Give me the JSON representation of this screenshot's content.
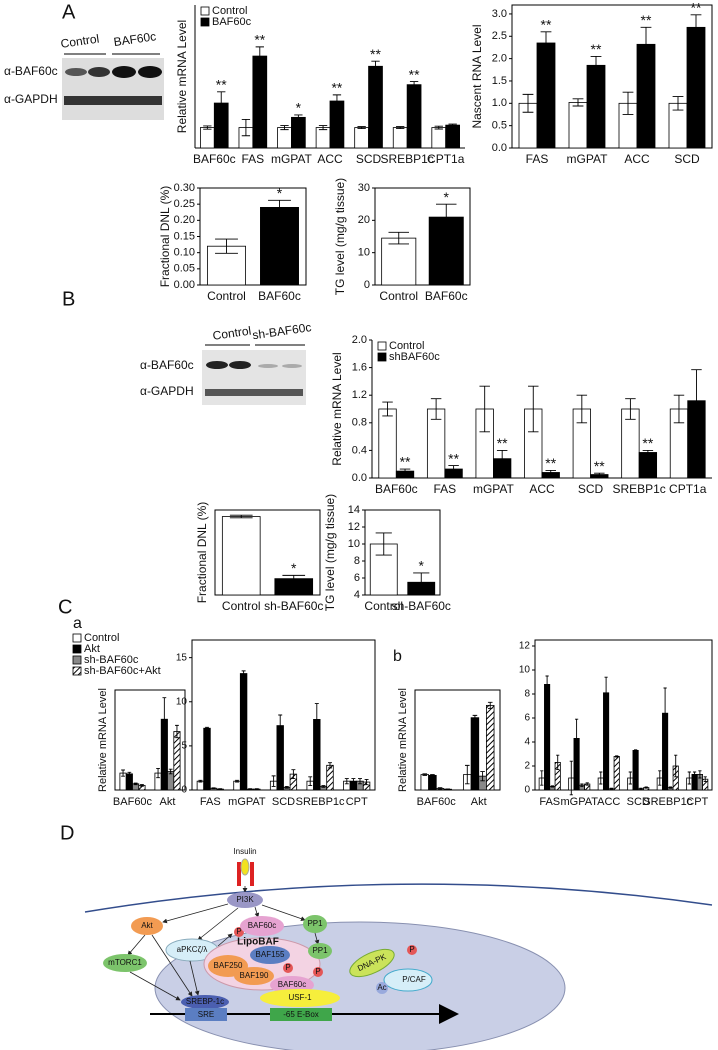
{
  "panel_labels": [
    "A",
    "B",
    "C",
    "D"
  ],
  "subpanel_labels": [
    "a",
    "b"
  ],
  "blots": [
    {
      "lanes": [
        "Control",
        "BAF60c"
      ],
      "rows": [
        "α-BAF60c",
        "α-GAPDH"
      ]
    },
    {
      "lanes": [
        "Control",
        "sh-BAF60c"
      ],
      "rows": [
        "α-BAF60c",
        "α-GAPDH"
      ]
    }
  ],
  "diagram": {
    "nodes": [
      "Insulin",
      "PI3K",
      "Akt",
      "aPKCζ/λ",
      "P",
      "BAF60c",
      "PP1",
      "mTORC1",
      "LipoBAF",
      "BAF155",
      "BAF250",
      "BAF190",
      "P",
      "BAF60c",
      "PP1",
      "P",
      "DNA-PK",
      "P",
      "Ac",
      "P/CAF",
      "USF-1",
      "SREBP-1c",
      "SRE",
      "-65 E-Box"
    ]
  },
  "chart_data": [
    {
      "type": "bar",
      "ylabel": "Relative mRNA Level",
      "categories": [
        "BAF60c",
        "FAS",
        "mGPAT",
        "ACC",
        "SCD",
        "SREBP1c",
        "CPT1a"
      ],
      "series": [
        {
          "name": "Control",
          "color": "#ffffff",
          "values": [
            1,
            1,
            1,
            1,
            1,
            1,
            1
          ],
          "errors": [
            0.08,
            0.4,
            0.1,
            0.1,
            0.05,
            0.05,
            0.07
          ]
        },
        {
          "name": "BAF60c",
          "color": "#000000",
          "values": [
            2.2,
            4.5,
            1.5,
            2.3,
            4.0,
            3.1,
            1.12
          ],
          "errors": [
            0.55,
            0.45,
            0.12,
            0.3,
            0.25,
            0.15,
            0.05
          ]
        }
      ],
      "annotations": [
        "**",
        "**",
        "*",
        "**",
        "**",
        "**",
        null
      ],
      "ylim": [
        0,
        7
      ],
      "legend": "upper left"
    },
    {
      "type": "bar",
      "ylabel": "Nascent RNA Level",
      "categories": [
        "FAS",
        "mGPAT",
        "ACC",
        "SCD"
      ],
      "series": [
        {
          "color": "#ffffff",
          "values": [
            1.0,
            1.02,
            1.0,
            1.0
          ],
          "errors": [
            0.2,
            0.08,
            0.25,
            0.15
          ]
        },
        {
          "color": "#000000",
          "values": [
            2.35,
            1.85,
            2.32,
            2.7
          ],
          "errors": [
            0.25,
            0.2,
            0.38,
            0.28
          ]
        }
      ],
      "annotations": [
        "**",
        "**",
        "**",
        "**"
      ],
      "ylim": [
        0,
        3.2
      ],
      "yticks": [
        {
          "value": 0,
          "label": "0.0"
        },
        {
          "value": 0.5,
          "label": "0.5"
        },
        {
          "value": 1,
          "label": "1.0"
        },
        {
          "value": 1.5,
          "label": "1.5"
        },
        {
          "value": 2,
          "label": "2.0"
        },
        {
          "value": 2.5,
          "label": "2.5"
        },
        {
          "value": 3,
          "label": "3.0"
        }
      ]
    },
    {
      "type": "bar",
      "ylabel": "Fractional DNL (%)",
      "categories": [
        "Control",
        "BAF60c"
      ],
      "values": [
        0.12,
        0.24
      ],
      "errors": [
        0.022,
        0.022
      ],
      "colors": [
        "#ffffff",
        "#000000"
      ],
      "annotations": [
        null,
        "*"
      ],
      "ylim": [
        0,
        0.3
      ],
      "yticks": [
        {
          "value": 0,
          "label": "0.00"
        },
        {
          "value": 0.05,
          "label": "0.05"
        },
        {
          "value": 0.1,
          "label": "0.10"
        },
        {
          "value": 0.15,
          "label": "0.15"
        },
        {
          "value": 0.2,
          "label": "0.20"
        },
        {
          "value": 0.25,
          "label": "0.25"
        },
        {
          "value": 0.3,
          "label": "0.30"
        }
      ]
    },
    {
      "type": "bar",
      "ylabel": "TG level (mg/g tissue)",
      "categories": [
        "Control",
        "BAF60c"
      ],
      "values": [
        14.5,
        21
      ],
      "errors": [
        1.8,
        4
      ],
      "colors": [
        "#ffffff",
        "#000000"
      ],
      "annotations": [
        null,
        "*"
      ],
      "ylim": [
        0,
        30
      ],
      "yticks": [
        0,
        10,
        20,
        30
      ]
    },
    {
      "type": "bar",
      "ylabel": "Relative mRNA Level",
      "categories": [
        "BAF60c",
        "FAS",
        "mGPAT",
        "ACC",
        "SCD",
        "SREBP1c",
        "CPT1a"
      ],
      "series": [
        {
          "name": "Control",
          "color": "#ffffff",
          "values": [
            1,
            1,
            1,
            1,
            1,
            1,
            1
          ],
          "errors": [
            0.1,
            0.15,
            0.33,
            0.33,
            0.2,
            0.15,
            0.2
          ]
        },
        {
          "name": "shBAF60c",
          "color": "#000000",
          "values": [
            0.1,
            0.13,
            0.28,
            0.08,
            0.05,
            0.37,
            1.12
          ],
          "errors": [
            0.03,
            0.05,
            0.12,
            0.03,
            0.02,
            0.03,
            0.45
          ]
        }
      ],
      "annotations": [
        "**",
        "**",
        "**",
        "**",
        "**",
        "**",
        null
      ],
      "ylim": [
        0,
        2
      ],
      "yticks": [
        {
          "value": 0,
          "label": "0.0"
        },
        {
          "value": 0.4,
          "label": "0.4"
        },
        {
          "value": 0.8,
          "label": "0.8"
        },
        {
          "value": 1.2,
          "label": "1.2"
        },
        {
          "value": 1.6,
          "label": "1.6"
        },
        {
          "value": 2,
          "label": "2.0"
        }
      ],
      "legend": "upper left"
    },
    {
      "type": "bar",
      "ylabel": "Fractional DNL (%)",
      "categories": [
        "Control",
        "sh-BAF60c"
      ],
      "values": [
        8.2,
        7.25
      ],
      "errors": [
        0.02,
        0.05
      ],
      "colors": [
        "#ffffff",
        "#000000"
      ],
      "annotations": [
        null,
        "*"
      ],
      "ylim": [
        7,
        8.3
      ]
    },
    {
      "type": "bar",
      "ylabel": "TG level (mg/g tissue)",
      "categories": [
        "Control",
        "sh-BAF60c"
      ],
      "values": [
        10,
        5.5
      ],
      "errors": [
        1.3,
        1.1
      ],
      "colors": [
        "#ffffff",
        "#000000"
      ],
      "annotations": [
        null,
        "*"
      ],
      "ylim": [
        4,
        14
      ],
      "yticks": [
        4,
        6,
        8,
        10,
        12,
        14
      ]
    },
    {
      "type": "bar",
      "ylabel": "Relative mRNA Level",
      "categories": [
        "BAF60c",
        "Akt"
      ],
      "series": [
        {
          "name": "Control",
          "color": "#ffffff",
          "values": [
            1.1,
            1.1
          ],
          "errors": [
            0.2,
            0.3
          ]
        },
        {
          "name": "Akt",
          "color": "#000000",
          "values": [
            1.05,
            4.6
          ],
          "errors": [
            0.1,
            1.4
          ]
        },
        {
          "name": "sh-BAF60c",
          "color": "#888888",
          "values": [
            0.4,
            1.2
          ],
          "errors": [
            0.05,
            0.15
          ]
        },
        {
          "name": "sh-BAF60c+Akt",
          "color": "#ffffff",
          "hatch": true,
          "values": [
            0.3,
            3.8
          ],
          "errors": [
            0.05,
            0.4
          ]
        }
      ],
      "ylim": [
        0,
        6.5
      ],
      "legend": "above"
    },
    {
      "type": "bar",
      "categories": [
        "FAS",
        "mGPAT",
        "SCD",
        "SREBP1c",
        "CPT"
      ],
      "series": [
        {
          "color": "#ffffff",
          "values": [
            1,
            1,
            1,
            1,
            1
          ],
          "errors": [
            0.1,
            0.1,
            0.6,
            0.5,
            0.3
          ]
        },
        {
          "color": "#000000",
          "values": [
            7,
            13.2,
            7.3,
            8,
            1
          ],
          "errors": [
            0.1,
            0.3,
            1.2,
            1.8,
            0.3
          ]
        },
        {
          "color": "#888888",
          "values": [
            0.2,
            0.1,
            0.3,
            0.4,
            1
          ],
          "errors": [
            0.05,
            0.05,
            0.1,
            0.1,
            0.3
          ]
        },
        {
          "color": "#ffffff",
          "hatch": true,
          "values": [
            0.1,
            0.1,
            1.8,
            2.8,
            0.9
          ],
          "errors": [
            0.05,
            0.05,
            0.5,
            0.3,
            0.3
          ]
        }
      ],
      "ylim": [
        0,
        17
      ],
      "yticks": [
        0,
        5,
        10,
        15
      ]
    },
    {
      "type": "bar",
      "ylabel": "Relative mRNA Level",
      "categories": [
        "BAF60c",
        "Akt"
      ],
      "series": [
        {
          "color": "#ffffff",
          "values": [
            1.0,
            1.0
          ],
          "errors": [
            0.05,
            0.6
          ]
        },
        {
          "color": "#000000",
          "values": [
            0.95,
            4.7
          ],
          "errors": [
            0.05,
            0.15
          ]
        },
        {
          "color": "#888888",
          "values": [
            0.1,
            0.9
          ],
          "errors": [
            0.05,
            0.3
          ]
        },
        {
          "color": "#ffffff",
          "hatch": true,
          "values": [
            0.05,
            5.5
          ],
          "errors": [
            0.02,
            0.2
          ]
        }
      ],
      "ylim": [
        0,
        6.5
      ]
    },
    {
      "type": "bar",
      "categories": [
        "FAS",
        "mGPAT",
        "ACC",
        "SCD",
        "SREBP1c",
        "CPT"
      ],
      "series": [
        {
          "color": "#ffffff",
          "values": [
            1,
            1,
            1,
            1,
            1,
            1
          ],
          "errors": [
            0.6,
            1.4,
            0.5,
            0.5,
            0.6,
            0.5
          ]
        },
        {
          "color": "#000000",
          "values": [
            8.8,
            4.3,
            8.1,
            3.3,
            6.4,
            1.3
          ],
          "errors": [
            0.7,
            1.6,
            1.3,
            0.05,
            2.1,
            0.2
          ]
        },
        {
          "color": "#888888",
          "values": [
            0.3,
            0.4,
            0.1,
            0.1,
            0.2,
            1.3
          ],
          "errors": [
            0.05,
            0.1,
            0.05,
            0.05,
            0.05,
            0.3
          ]
        },
        {
          "color": "#ffffff",
          "hatch": true,
          "values": [
            2.3,
            0.5,
            2.8,
            0.2,
            2,
            0.9
          ],
          "errors": [
            0.6,
            0.1,
            0.05,
            0.05,
            0.9,
            0.2
          ]
        }
      ],
      "ylim": [
        0,
        12.5
      ],
      "yticks": [
        0,
        2,
        4,
        6,
        8,
        10,
        12
      ]
    }
  ]
}
